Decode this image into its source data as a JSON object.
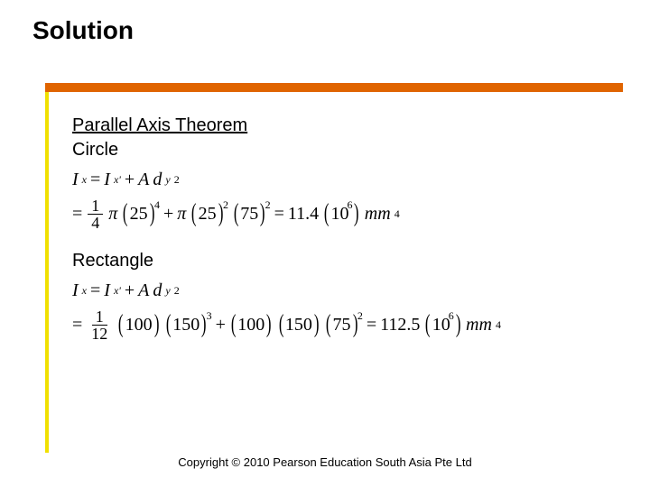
{
  "title": "Solution",
  "colors": {
    "orange": "#e06400",
    "yellow": "#f0e000",
    "text": "#000000",
    "background": "#ffffff"
  },
  "subheading": "Parallel Axis Theorem",
  "circle": {
    "label": "Circle",
    "eq1": {
      "I": "I",
      "Isub": "x",
      "eq": "=",
      "Ibar": "I",
      "Ibarsub": "x'",
      "plus": "+",
      "A": "A",
      "d": "d",
      "dsub": "y",
      "dsup": "2"
    },
    "eq2": {
      "frac_num": "1",
      "frac_den": "4",
      "pi1": "π",
      "v1": "25",
      "e1": "4",
      "plus": "+",
      "pi2": "π",
      "v2": "25",
      "e2": "2",
      "v3": "75",
      "e3": "2",
      "eq": "=",
      "res": "11.4",
      "resexp": "6",
      "unit": "mm",
      "unitexp": "4",
      "ten": "10"
    }
  },
  "rectangle": {
    "label": "Rectangle",
    "eq1": {
      "I": "I",
      "Isub": "x",
      "eq": "=",
      "Ibar": "I",
      "Ibarsub": "x'",
      "plus": "+",
      "A": "A",
      "d": "d",
      "dsub": "y",
      "dsup": "2"
    },
    "eq2": {
      "frac_num": "1",
      "frac_den": "12",
      "v1": "100",
      "v2": "150",
      "e2": "3",
      "plus": "+",
      "v3": "100",
      "v4": "150",
      "v5": "75",
      "e5": "2",
      "eq": "=",
      "res": "112.5",
      "resexp": "6",
      "unit": "mm",
      "unitexp": "4",
      "ten": "10"
    }
  },
  "copyright": "Copyright © 2010 Pearson Education South Asia Pte Ltd"
}
